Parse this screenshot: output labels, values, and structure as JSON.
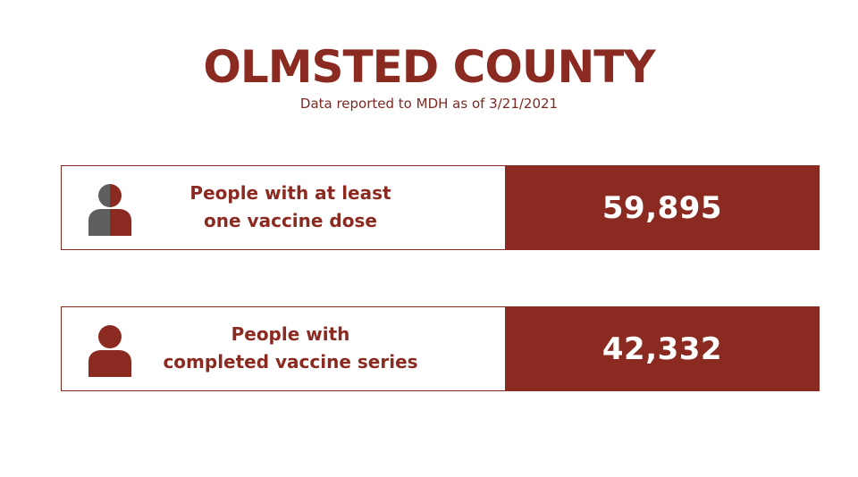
{
  "header": {
    "title": "OLMSTED COUNTY",
    "subtitle": "Data reported to MDH as of 3/21/2021"
  },
  "colors": {
    "accent": "#8b2a20",
    "icon_gray": "#5f5f5f",
    "background": "#ffffff",
    "value_text": "#ffffff"
  },
  "stats": [
    {
      "icon": "half-filled-person-icon",
      "label_lines": [
        "People with at least",
        "one vaccine dose"
      ],
      "value": "59,895"
    },
    {
      "icon": "filled-person-icon",
      "label_lines": [
        "People with",
        "completed vaccine series"
      ],
      "value": "42,332"
    }
  ]
}
